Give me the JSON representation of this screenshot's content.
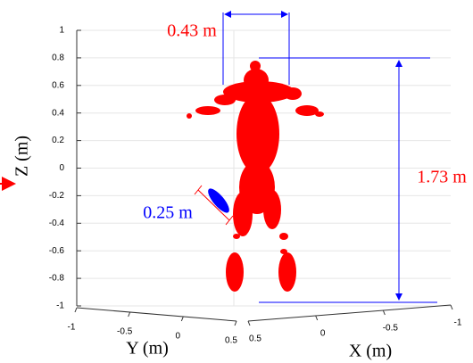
{
  "chart_data": {
    "type": "scatter3d",
    "xlabel": "X (m)",
    "ylabel": "Y (m)",
    "zlabel": "Z (m)",
    "xlim": [
      -1,
      0.5
    ],
    "xticks": [
      0.5,
      0,
      -0.5,
      -1
    ],
    "ylim": [
      -1,
      0.5
    ],
    "yticks": [
      -1,
      -0.5,
      0,
      0.5
    ],
    "zlim": [
      -1,
      1
    ],
    "zticks": [
      -1,
      -0.8,
      -0.6,
      -0.4,
      -0.2,
      0,
      0.2,
      0.4,
      0.6,
      0.8,
      1
    ],
    "grid": true,
    "color": "#ff0000",
    "annotations": {
      "width": "0.43 m",
      "height": "1.73 m",
      "limb": "0.25 m"
    }
  }
}
